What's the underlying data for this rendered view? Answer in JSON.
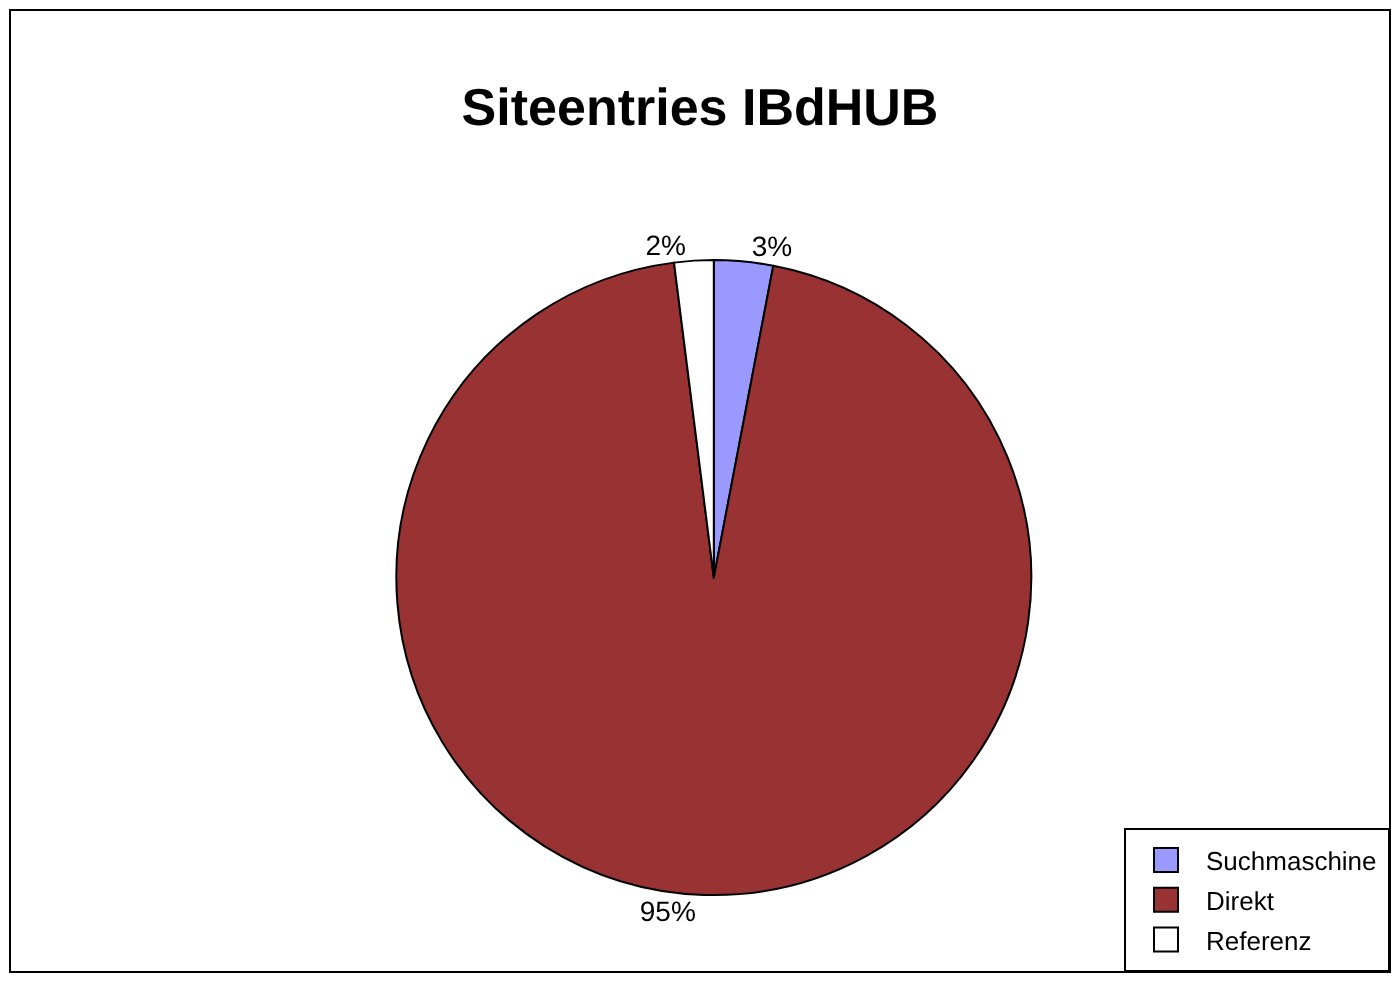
{
  "chart_data": {
    "type": "pie",
    "title": "Siteentries IBdHUB",
    "categories": [
      "Suchmaschine",
      "Direkt",
      "Referenz"
    ],
    "values": [
      3,
      95,
      2
    ],
    "colors": [
      "#9999ff",
      "#993333",
      "#ffffff"
    ],
    "value_labels": [
      "3%",
      "95%",
      "2%"
    ],
    "legend": "bottom right"
  }
}
